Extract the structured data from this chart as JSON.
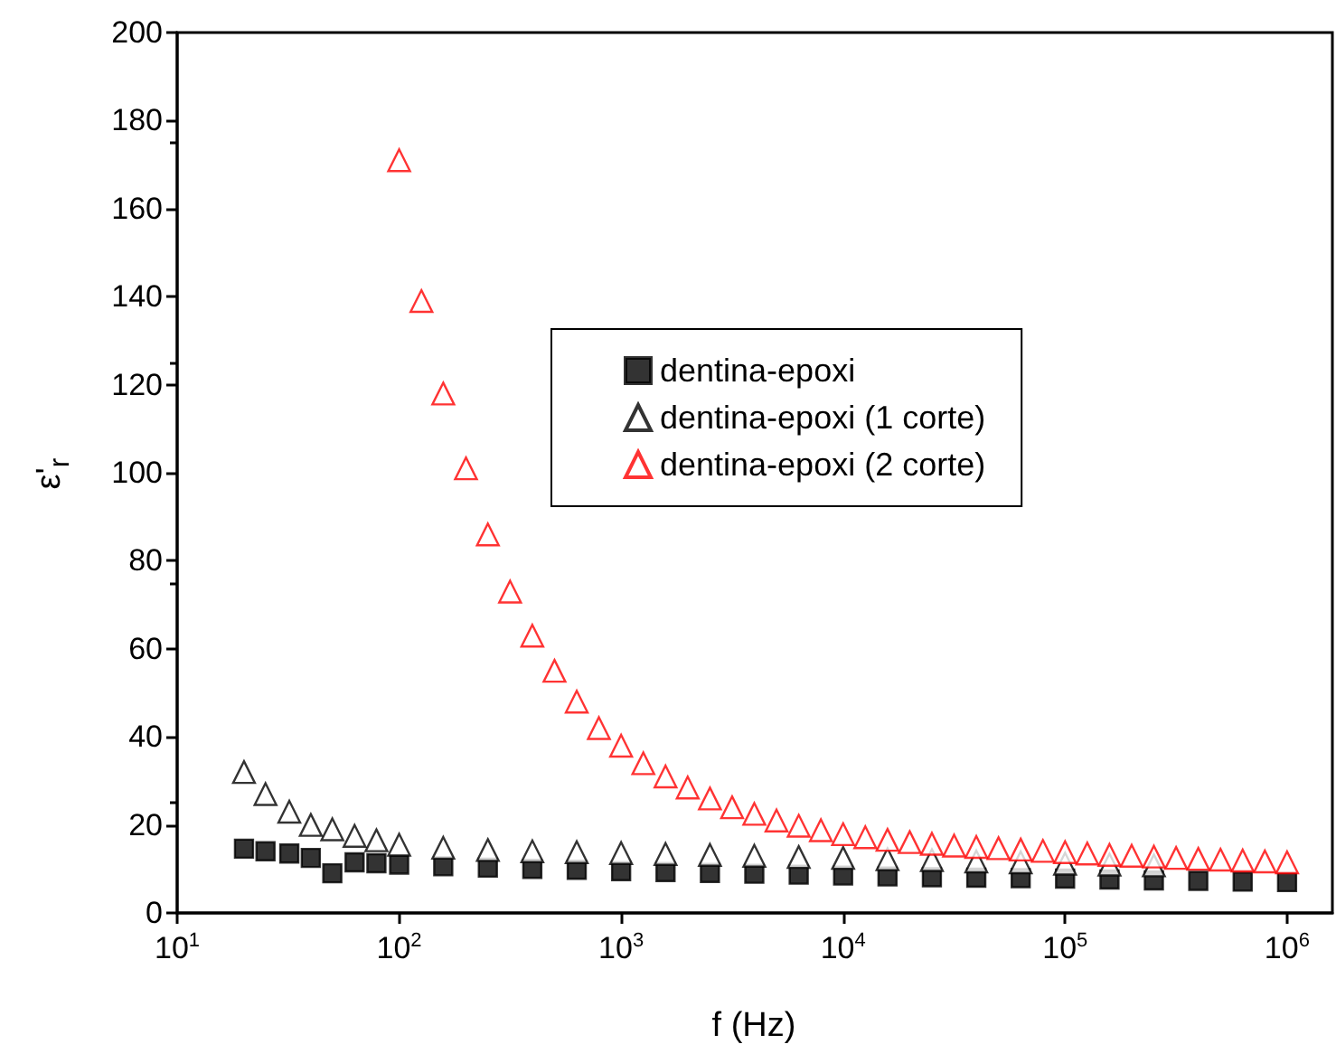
{
  "chart_data": {
    "type": "scatter",
    "xlabel": "f (Hz)",
    "ylabel": "ε'$_{r}$",
    "log": "x",
    "grid": false,
    "legend": "center",
    "xlim": [
      10,
      1600000
    ],
    "xticks": [
      {
        "value": 10,
        "label": "10$^{1}$"
      },
      {
        "value": 100,
        "label": "10$^{2}$"
      },
      {
        "value": 1000,
        "label": "10$^{3}$"
      },
      {
        "value": 10000,
        "label": "10$^{4}$"
      },
      {
        "value": 100000,
        "label": "10$^{5}$"
      },
      {
        "value": 1000000,
        "label": "10$^{6}$"
      }
    ],
    "ylim": [
      0,
      200
    ],
    "yticks": [
      0,
      20,
      40,
      60,
      80,
      100,
      120,
      140,
      160,
      180,
      200
    ],
    "series": [
      {
        "name": "dentina-epoxi",
        "color": "#000000",
        "marker": "square",
        "x": [
          20,
          25,
          32,
          40,
          50,
          63,
          79,
          100,
          158,
          251,
          398,
          631,
          1000,
          1585,
          2512,
          3981,
          6310,
          10000,
          15849,
          25119,
          39811,
          63096,
          100000,
          158489,
          251189,
          398107,
          630957,
          1000000
        ],
        "values": [
          14.6,
          14,
          13.5,
          12.5,
          9,
          11.5,
          11.3,
          11,
          10.6,
          10.3,
          10,
          9.8,
          9.5,
          9.3,
          9.1,
          8.9,
          8.7,
          8.5,
          8.3,
          8.1,
          8,
          7.9,
          7.8,
          7.6,
          7.4,
          7.3,
          7.1,
          7
        ]
      },
      {
        "name": "dentina-epoxi (1 corte)",
        "color": "#000000",
        "marker": "triangle",
        "x": [
          20,
          25,
          32,
          40,
          50,
          63,
          79,
          100,
          158,
          251,
          398,
          631,
          1000,
          1585,
          2512,
          3981,
          6310,
          10000,
          15849,
          25119,
          39811,
          63096,
          100000,
          158489,
          251189
        ],
        "values": [
          32,
          27,
          23,
          20,
          19,
          17.5,
          16.5,
          15.5,
          14.8,
          14.3,
          14,
          13.8,
          13.6,
          13.4,
          13.2,
          13,
          12.7,
          12.5,
          12.2,
          12,
          11.7,
          11.5,
          11.2,
          11,
          10.8
        ]
      },
      {
        "name": "dentina-epoxi (2 corte)",
        "color": "#ff0000",
        "marker": "triangle",
        "x": [
          100,
          126,
          158,
          200,
          251,
          316,
          398,
          501,
          631,
          794,
          1000,
          1259,
          1585,
          1995,
          2512,
          3162,
          3981,
          5012,
          6310,
          7943,
          10000,
          12589,
          15849,
          19953,
          25119,
          31623,
          39811,
          50119,
          63096,
          79433,
          100000,
          125893,
          158489,
          199526,
          251189,
          316228,
          398107,
          501187,
          630957,
          794328,
          1000000
        ],
        "values": [
          171,
          139,
          118,
          101,
          86,
          73,
          63,
          55,
          48,
          42,
          38,
          34,
          31,
          28.5,
          26,
          24,
          22.5,
          21,
          19.8,
          18.8,
          17.9,
          17.2,
          16.6,
          16.1,
          15.7,
          15.3,
          15,
          14.7,
          14.4,
          14.1,
          13.8,
          13.5,
          13.2,
          13,
          12.8,
          12.5,
          12.3,
          12.1,
          11.9,
          11.7,
          11.5
        ]
      }
    ]
  }
}
